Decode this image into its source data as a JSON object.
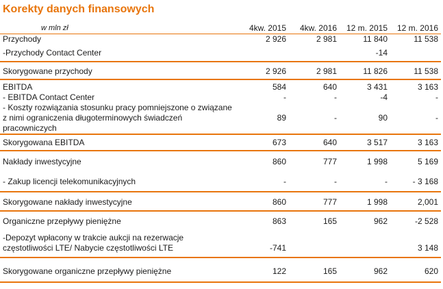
{
  "title": "Korekty danych finansowych",
  "unit": "w mln zł",
  "columns": [
    "4kw. 2015",
    "4kw. 2016",
    "12 m. 2015",
    "12 m. 2016"
  ],
  "rows": [
    {
      "label": "Przychody",
      "values": [
        "2 926",
        "2 981",
        "11 840",
        "11 538"
      ]
    },
    {
      "label": "-Przychody Contact Center",
      "values": [
        "",
        "",
        "-14",
        ""
      ]
    },
    {
      "label": "Skorygowane przychody",
      "values": [
        "2 926",
        "2 981",
        "11 826",
        "11 538"
      ]
    },
    {
      "label": "EBITDA",
      "values": [
        "584",
        "640",
        "3 431",
        "3 163"
      ]
    },
    {
      "label": "- EBITDA  Contact Center",
      "values": [
        "-",
        "-",
        "-4",
        "-"
      ]
    },
    {
      "label": "- Koszty rozwiązania stosunku pracy pomniejszone o związane z nimi ograniczenia długoterminowych świadczeń pracowniczych",
      "values": [
        "89",
        "-",
        "90",
        "-"
      ]
    },
    {
      "label": "Skorygowana EBITDA",
      "values": [
        "673",
        "640",
        "3 517",
        "3 163"
      ]
    },
    {
      "label": "Nakłady inwestycyjne",
      "values": [
        "860",
        "777",
        "1 998",
        "5 169"
      ]
    },
    {
      "label": "- Zakup licencji telekomunikacyjnych",
      "values": [
        "-",
        "-",
        "-",
        "- 3 168"
      ]
    },
    {
      "label": "Skorygowane nakłady inwestycyjne",
      "values": [
        "860",
        "777",
        "1 998",
        "2,001"
      ]
    },
    {
      "label": "Organiczne przepływy pieniężne",
      "values": [
        "863",
        "165",
        "962",
        "-2 528"
      ]
    },
    {
      "label": "-Depozyt wpłacony w trakcie aukcji na rezerwacje częstotliwości LTE/ Nabycie częstotliwości LTE",
      "values": [
        "-741",
        "",
        "",
        "3 148"
      ]
    },
    {
      "label": "Skorygowane organiczne przepływy pieniężne",
      "values": [
        "122",
        "165",
        "962",
        "620"
      ]
    }
  ]
}
